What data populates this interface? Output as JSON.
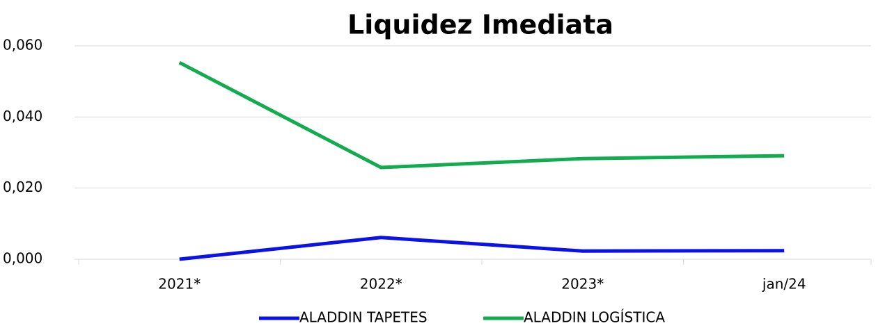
{
  "chart_data": {
    "type": "line",
    "title": "Liquidez Imediata",
    "categories": [
      "2021*",
      "2022*",
      "2023*",
      "jan/24"
    ],
    "series": [
      {
        "name": "ALADDIN TAPETES",
        "color": "#0a12e8",
        "values": [
          0.0,
          0.0061,
          0.0023,
          0.0024
        ]
      },
      {
        "name": "ALADDIN LOGÍSTICA",
        "color": "#12ab4f",
        "values": [
          0.0553,
          0.0258,
          0.0283,
          0.0291
        ]
      }
    ],
    "ylim": [
      0,
      0.06
    ],
    "yticks": [
      {
        "value": 0,
        "label": "0,000"
      },
      {
        "value": 0.02,
        "label": "0,020"
      },
      {
        "value": 0.04,
        "label": "0,040"
      },
      {
        "value": 0.06,
        "label": "0,060"
      }
    ],
    "grid": true,
    "legend": "bottom"
  }
}
